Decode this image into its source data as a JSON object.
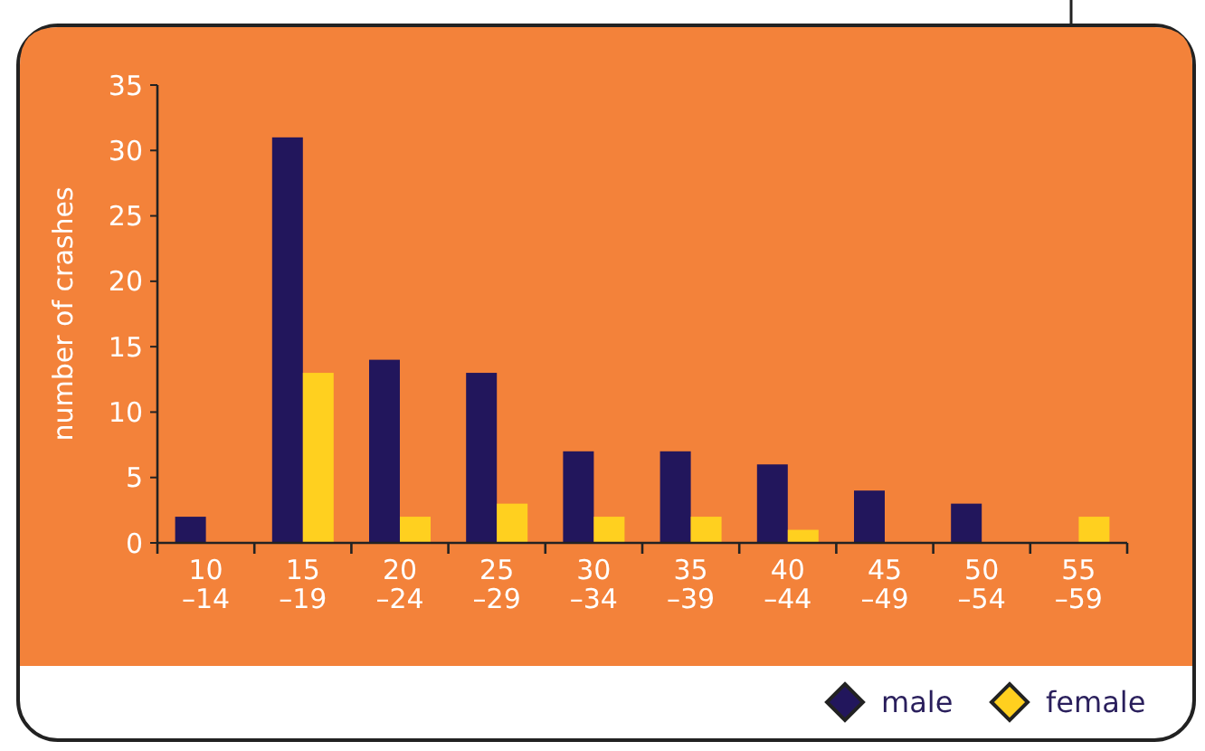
{
  "chart_data": {
    "type": "bar",
    "ylabel": "number of crashes",
    "categories": [
      "10\n–14",
      "15\n–19",
      "20\n–24",
      "25\n–29",
      "30\n–34",
      "35\n–39",
      "40\n–44",
      "45\n–49",
      "50\n–54",
      "55\n–59"
    ],
    "series": [
      {
        "name": "male",
        "color": "#22165c",
        "values": [
          2,
          31,
          14,
          13,
          7,
          7,
          6,
          4,
          3,
          0
        ]
      },
      {
        "name": "female",
        "color": "#ffd01f",
        "values": [
          0,
          13,
          2,
          3,
          2,
          2,
          1,
          0,
          0,
          2
        ]
      }
    ],
    "ylim": [
      0,
      35
    ],
    "yticks": [
      0,
      5,
      10,
      15,
      20,
      25,
      30,
      35
    ],
    "grid": false,
    "legend": "bottom right",
    "marker": "diamond"
  }
}
